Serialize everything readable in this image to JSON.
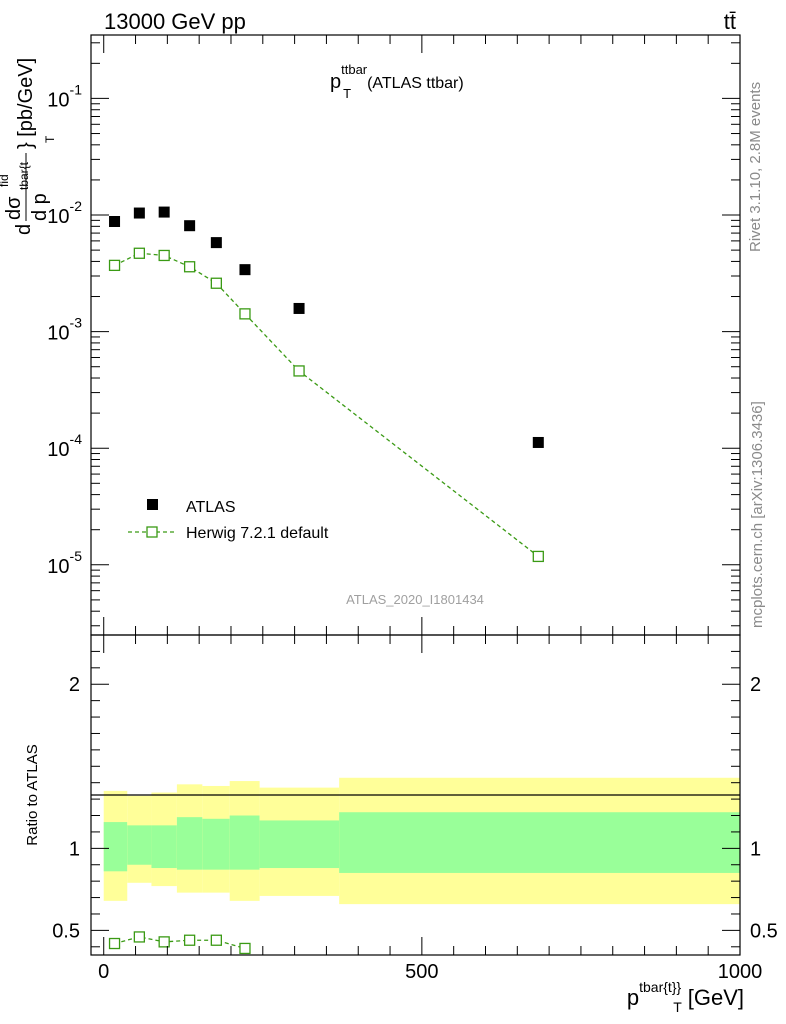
{
  "header": {
    "energy_label": "13000 GeV pp",
    "process_label": "tt̄"
  },
  "side_labels": {
    "rivet": "Rivet 3.1.10,  2.8M events",
    "mcplots": "mcplots.cern.ch [arXiv:1306.3436]"
  },
  "chart_data": [
    {
      "type": "scatter",
      "panel": "main",
      "title_main": "p",
      "title_sub": "T",
      "title_sup": "ttbar",
      "title_suffix": "(ATLAS ttbar)",
      "watermark": "ATLAS_2020_I1801434",
      "ylabel_parts": [
        "d",
        "dσ",
        "fid",
        "tbar{t",
        "d p",
        "T",
        "} [pb/GeV]"
      ],
      "xlim": [
        -20,
        1000
      ],
      "yscale": "log",
      "ylim": [
        2.5e-06,
        0.35
      ],
      "y_tick_labels": [
        {
          "value": 0.1,
          "base": "10",
          "exp": "-1"
        },
        {
          "value": 0.01,
          "base": "10",
          "exp": "-2"
        },
        {
          "value": 0.001,
          "base": "10",
          "exp": "-3"
        },
        {
          "value": 0.0001,
          "base": "10",
          "exp": "-4"
        },
        {
          "value": 1e-05,
          "base": "10",
          "exp": "-5"
        }
      ],
      "legend_position": "lower-left",
      "series": [
        {
          "name": "ATLAS",
          "style": "filled-square",
          "color": "#000000",
          "x": [
            17,
            56,
            95,
            135,
            177,
            222,
            307,
            683
          ],
          "y": [
            0.0088,
            0.0104,
            0.0106,
            0.0081,
            0.0058,
            0.0034,
            0.00158,
            0.000112
          ]
        },
        {
          "name": "Herwig 7.2.1 default",
          "style": "open-square-dashed",
          "color": "#3a9a14",
          "x": [
            17,
            56,
            95,
            135,
            177,
            222,
            307,
            683
          ],
          "y": [
            0.0037,
            0.0047,
            0.0045,
            0.0036,
            0.0026,
            0.00142,
            0.00046,
            1.18e-05
          ]
        }
      ]
    },
    {
      "type": "line",
      "panel": "ratio",
      "ylabel": "Ratio to ATLAS",
      "xlabel_main": "p",
      "xlabel_sup": "tbar{t}",
      "xlabel_sub": "T",
      "xlabel_suffix": "[GeV]",
      "xlim": [
        -20,
        1000
      ],
      "ylim": [
        0.35,
        2.3
      ],
      "x_tick_labels": [
        "0",
        "500",
        "1000"
      ],
      "x_tick_values": [
        0,
        500,
        1000
      ],
      "y_tick_labels": [
        "0.5",
        "1",
        "2"
      ],
      "y_tick_values": [
        0.5,
        1,
        2
      ],
      "bands": {
        "bin_edges": [
          0,
          37,
          75,
          115,
          155,
          198,
          245,
          370,
          1000
        ],
        "outer_color": "#ffff99",
        "inner_color": "#99ff99",
        "outer_low": [
          0.68,
          0.79,
          0.77,
          0.73,
          0.73,
          0.68,
          0.71,
          0.66
        ],
        "outer_high": [
          1.35,
          1.32,
          1.34,
          1.39,
          1.38,
          1.41,
          1.37,
          1.43
        ],
        "inner_low": [
          0.86,
          0.9,
          0.88,
          0.87,
          0.87,
          0.87,
          0.88,
          0.85
        ],
        "inner_high": [
          1.16,
          1.14,
          1.14,
          1.19,
          1.18,
          1.2,
          1.17,
          1.22
        ]
      },
      "series": [
        {
          "name": "Herwig 7.2.1 default / ATLAS",
          "color": "#3a9a14",
          "x": [
            17,
            56,
            95,
            135,
            177,
            222
          ],
          "y": [
            0.42,
            0.46,
            0.43,
            0.44,
            0.44,
            0.39
          ]
        }
      ]
    }
  ]
}
